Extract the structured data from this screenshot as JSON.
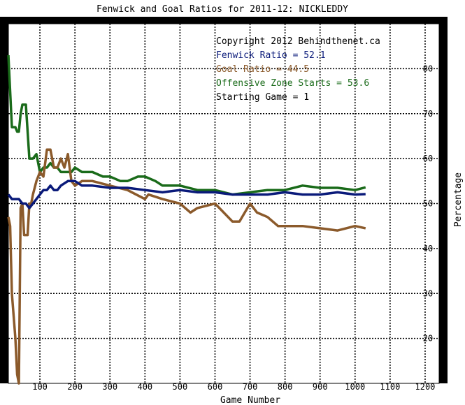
{
  "chart_data": {
    "type": "line",
    "title": "Fenwick and Goal Ratios for 2011-12: NICKLEDDY",
    "xlabel": "Game Number",
    "ylabel": "Percentage",
    "xlim": [
      10,
      1240
    ],
    "ylim": [
      10,
      90
    ],
    "x_ticks": [
      100,
      200,
      300,
      400,
      500,
      600,
      700,
      800,
      900,
      1000,
      1100,
      1200
    ],
    "y_ticks": [
      20,
      30,
      40,
      50,
      60,
      70,
      80
    ],
    "grid": true,
    "legend_position": "top-right",
    "annotations": [
      {
        "text": "Copyright 2012 Behindthenet.ca",
        "color": "#000000"
      },
      {
        "text": "Fenwick Ratio = 52.1",
        "color": "#0a1a7a"
      },
      {
        "text": "Goal Ratio = 44.5",
        "color": "#8b5a2b"
      },
      {
        "text": "Offensive Zone Starts = 53.6",
        "color": "#1a6b1a"
      },
      {
        "text": "Starting Game = 1",
        "color": "#000000"
      }
    ],
    "series": [
      {
        "name": "Fenwick Ratio",
        "color": "#0a1a7a",
        "x": [
          10,
          20,
          30,
          40,
          50,
          60,
          70,
          80,
          90,
          100,
          110,
          120,
          130,
          140,
          150,
          160,
          180,
          200,
          220,
          250,
          300,
          350,
          400,
          450,
          500,
          550,
          600,
          650,
          700,
          750,
          800,
          850,
          900,
          950,
          1000,
          1030
        ],
        "y": [
          52,
          51,
          51,
          51,
          50,
          50,
          49,
          50,
          51,
          52,
          53,
          53,
          54,
          53,
          53,
          54,
          55,
          55,
          54,
          54,
          53.5,
          53.5,
          53,
          52.5,
          53,
          52.5,
          52.5,
          52,
          52,
          52,
          52.5,
          52,
          52,
          52.5,
          52,
          52.1
        ]
      },
      {
        "name": "Goal Ratio",
        "color": "#8b5a2b",
        "x": [
          10,
          15,
          20,
          25,
          30,
          35,
          40,
          45,
          50,
          55,
          60,
          65,
          70,
          75,
          80,
          90,
          100,
          110,
          120,
          130,
          140,
          150,
          160,
          170,
          180,
          190,
          200,
          220,
          250,
          300,
          350,
          400,
          410,
          450,
          500,
          530,
          550,
          600,
          650,
          670,
          700,
          720,
          750,
          780,
          800,
          850,
          900,
          950,
          1000,
          1030
        ],
        "y": [
          47,
          45,
          30,
          25,
          20,
          12,
          10,
          49,
          50,
          43,
          43,
          43,
          50,
          50,
          52,
          55,
          57,
          56,
          62,
          62,
          58,
          58,
          60,
          58,
          61,
          55,
          54,
          55,
          55,
          54,
          53,
          51,
          52,
          51,
          50,
          48,
          49,
          50,
          46,
          46,
          50,
          48,
          47,
          45,
          45,
          45,
          44.5,
          44,
          45,
          44.5
        ]
      },
      {
        "name": "Offensive Zone Starts",
        "color": "#1a6b1a",
        "x": [
          10,
          15,
          20,
          25,
          30,
          35,
          40,
          45,
          50,
          60,
          70,
          80,
          90,
          100,
          110,
          120,
          130,
          140,
          150,
          160,
          170,
          180,
          190,
          200,
          220,
          250,
          280,
          300,
          330,
          350,
          380,
          400,
          430,
          450,
          500,
          550,
          600,
          650,
          700,
          750,
          800,
          850,
          900,
          950,
          1000,
          1030
        ],
        "y": [
          83,
          75,
          67,
          67,
          67,
          66,
          66,
          70,
          72,
          72,
          60,
          60,
          61,
          57,
          58,
          58,
          59,
          58,
          58,
          57,
          57,
          57,
          57,
          58,
          57,
          57,
          56,
          56,
          55,
          55,
          56,
          56,
          55,
          54,
          54,
          53,
          53,
          52,
          52.5,
          53,
          53,
          54,
          53.5,
          53.5,
          53,
          53.6
        ]
      }
    ]
  }
}
